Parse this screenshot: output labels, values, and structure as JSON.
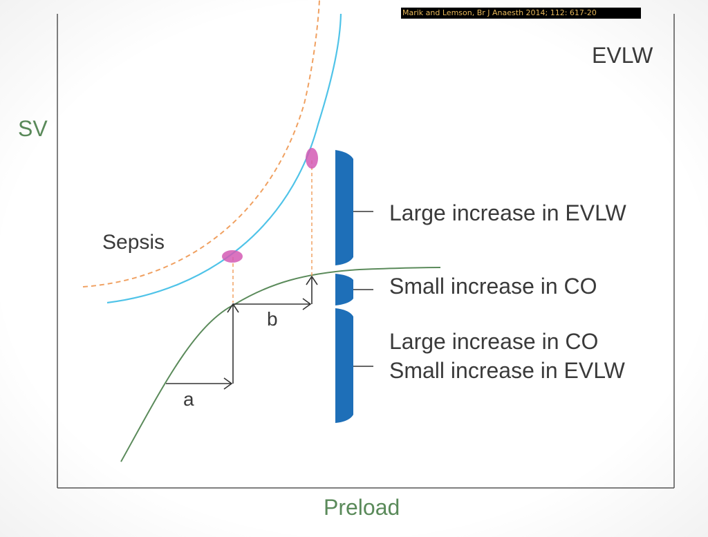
{
  "citation": "Marik and Lemson, Br J Anaesth 2014; 112: 617-20",
  "axes": {
    "y_label": "SV",
    "x_label": "Preload"
  },
  "curves": {
    "evlw_label": "EVLW",
    "sepsis_label": "Sepsis"
  },
  "steps": {
    "a_label": "a",
    "b_label": "b"
  },
  "annotations": {
    "large_evlw": "Large increase in EVLW",
    "small_co": "Small increase in CO",
    "large_co": "Large increase in CO",
    "small_evlw": "Small increase in EVLW"
  },
  "colors": {
    "frank_starling_curve": "#5a8a5a",
    "evlw_curve": "#4fc3e8",
    "sepsis_curve": "#f0a060",
    "marker": "#d45ab4",
    "bracket": "#1e6fb8",
    "axis": "#555555"
  }
}
